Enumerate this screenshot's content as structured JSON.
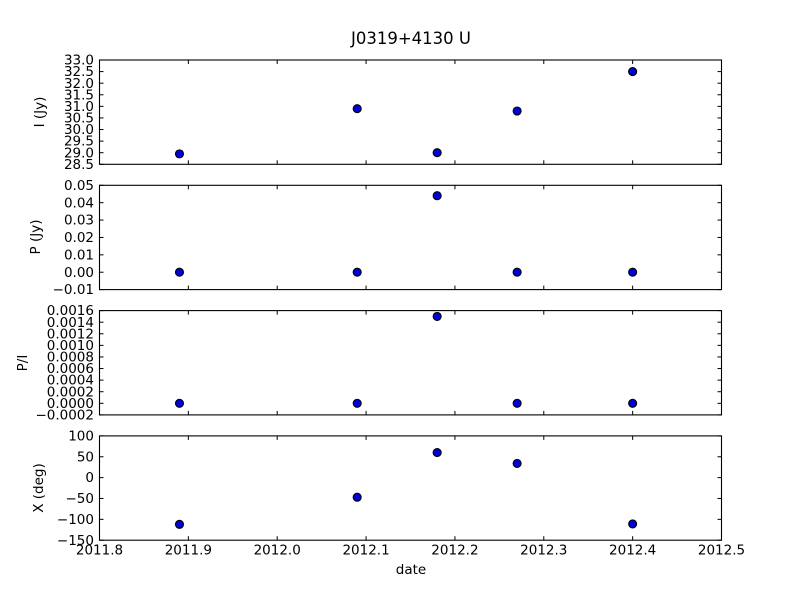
{
  "chart_data": {
    "type": "scatter",
    "title": "J0319+4130 U",
    "xlabel": "date",
    "xlim": [
      2011.8,
      2012.5
    ],
    "xticks": [
      "2011.8",
      "2011.9",
      "2012.0",
      "2012.1",
      "2012.2",
      "2012.3",
      "2012.4",
      "2012.5"
    ],
    "x": [
      2011.89,
      2012.09,
      2012.18,
      2012.27,
      2012.4
    ],
    "subplots": [
      {
        "ylabel": "I (Jy)",
        "ylim": [
          28.5,
          33.0
        ],
        "yticks": [
          "28.5",
          "29.0",
          "29.5",
          "30.0",
          "30.5",
          "31.0",
          "31.5",
          "32.0",
          "32.5",
          "33.0"
        ],
        "y": [
          28.95,
          30.9,
          29.0,
          30.8,
          32.5
        ]
      },
      {
        "ylabel": "P (Jy)",
        "ylim": [
          -0.01,
          0.05
        ],
        "yticks": [
          "-0.01",
          "0.00",
          "0.01",
          "0.02",
          "0.03",
          "0.04",
          "0.05"
        ],
        "y": [
          0.0,
          0.0,
          0.044,
          0.0,
          0.0
        ]
      },
      {
        "ylabel": "P/I",
        "ylim": [
          -0.0002,
          0.0016
        ],
        "yticks": [
          "-0.0002",
          "0.0000",
          "0.0002",
          "0.0004",
          "0.0006",
          "0.0008",
          "0.0010",
          "0.0012",
          "0.0014",
          "0.0016"
        ],
        "y": [
          0.0,
          0.0,
          0.0015,
          0.0,
          0.0
        ]
      },
      {
        "ylabel": "X (deg)",
        "ylim": [
          -150,
          100
        ],
        "yticks": [
          "-150",
          "-100",
          "-50",
          "0",
          "50",
          "100"
        ],
        "y": [
          -112,
          -47,
          60,
          34,
          -111
        ]
      }
    ],
    "legend": null,
    "grid": false,
    "marker": {
      "shape": "circle",
      "fill_color": "#0000dd",
      "edge_color": "#000000"
    },
    "axis_color": "#000000",
    "background_color": "#ffffff"
  }
}
